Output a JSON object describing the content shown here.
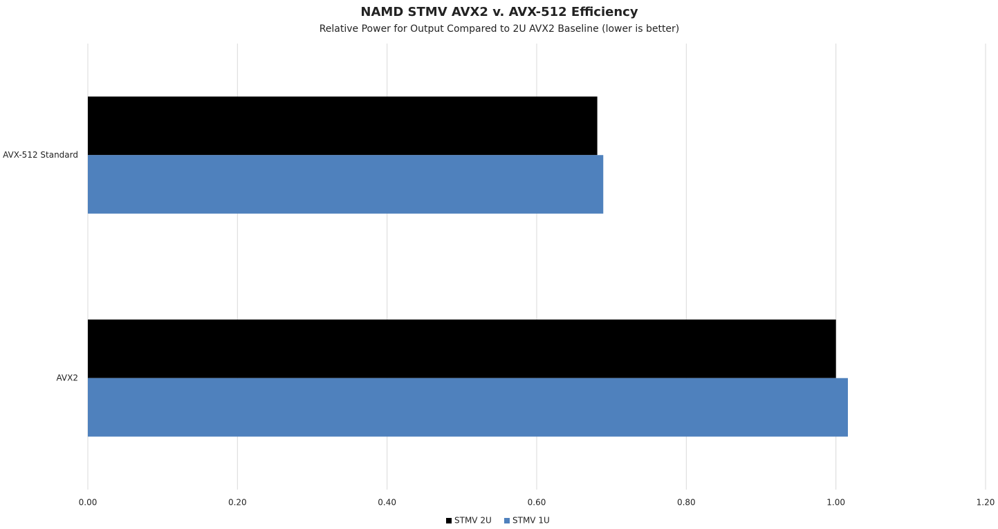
{
  "chart_data": {
    "type": "hbar",
    "title": "NAMD STMV AVX2 v. AVX-512 Efficiency",
    "subtitle": "Relative Power for Output Compared to 2U AVX2 Baseline (lower is better)",
    "categories": [
      "AVX-512 Standard",
      "AVX2"
    ],
    "series": [
      {
        "name": "STMV 2U",
        "color": "#000000",
        "values": [
          0.681,
          1.0
        ]
      },
      {
        "name": "STMV 1U",
        "color": "#4f81bd",
        "values": [
          0.689,
          1.016
        ]
      }
    ],
    "xlim": [
      0,
      1.2
    ],
    "xticks": [
      {
        "value": 0,
        "label": "0.00"
      },
      {
        "value": 0.2,
        "label": "0.20"
      },
      {
        "value": 0.4,
        "label": "0.40"
      },
      {
        "value": 0.6,
        "label": "0.60"
      },
      {
        "value": 0.8,
        "label": "0.80"
      },
      {
        "value": 1,
        "label": "1.00"
      },
      {
        "value": 1.2,
        "label": "1.20"
      }
    ],
    "grid": true,
    "legend": "bottom"
  }
}
